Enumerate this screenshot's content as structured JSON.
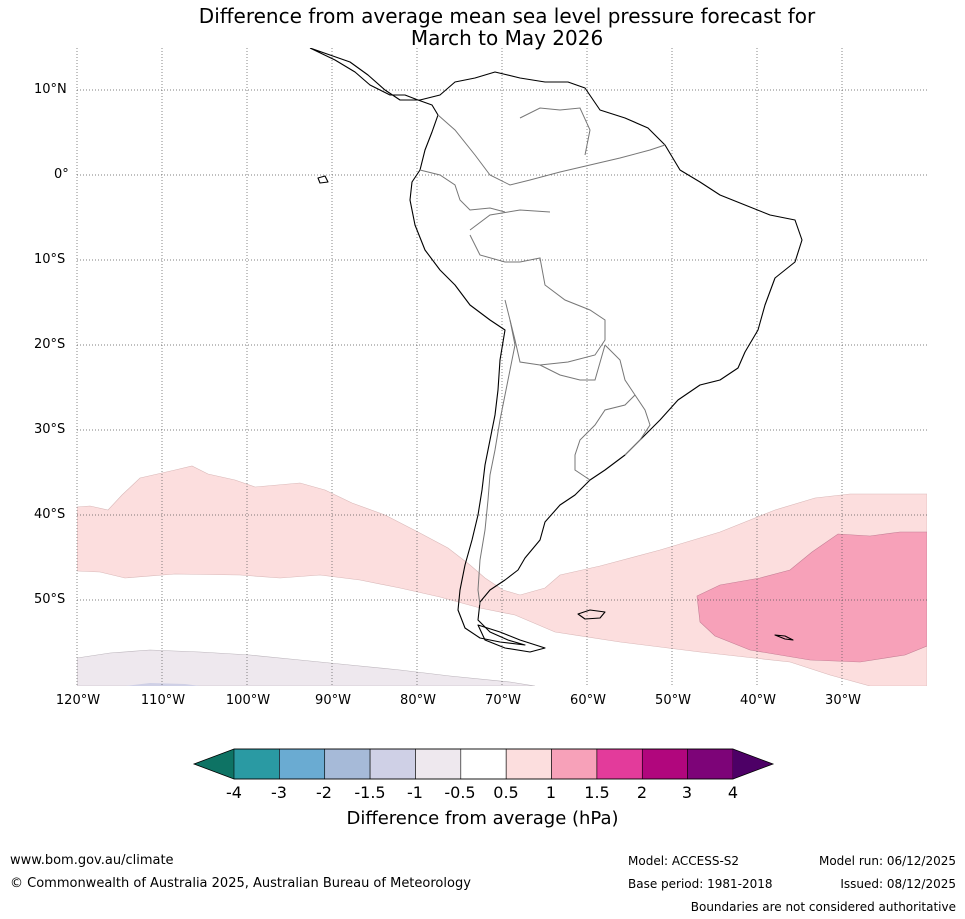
{
  "title_line1": "Difference from average mean sea level pressure forecast for",
  "title_line2": "March to May 2026",
  "lat_labels": [
    "10°N",
    "0°",
    "10°S",
    "20°S",
    "30°S",
    "40°S",
    "50°S"
  ],
  "lon_labels": [
    "120°W",
    "110°W",
    "100°W",
    "90°W",
    "80°W",
    "70°W",
    "60°W",
    "50°W",
    "40°W",
    "30°W"
  ],
  "colorbar": {
    "ticks": [
      "-4",
      "-3",
      "-2",
      "-1.5",
      "-1",
      "-0.5",
      "0.5",
      "1",
      "1.5",
      "2",
      "3",
      "4"
    ],
    "colors": [
      "#0e7364",
      "#2a9aa3",
      "#6aabd2",
      "#a6bad8",
      "#cfd0e6",
      "#eee8ee",
      "#ffffff",
      "#fcdede",
      "#f7a1b9",
      "#e33b9b",
      "#b1067d",
      "#7d0478",
      "#4d0066"
    ],
    "title": "Difference from average (hPa)"
  },
  "footer": {
    "website": "www.bom.gov.au/climate",
    "copyright": "© Commonwealth of Australia 2025, Australian Bureau of Meteorology",
    "model": "Model: ACCESS-S2",
    "model_run": "Model run: 06/12/2025",
    "base_period": "Base period: 1981-2018",
    "issued": "Issued: 08/12/2025",
    "boundaries": "Boundaries are not considered authoritative"
  }
}
